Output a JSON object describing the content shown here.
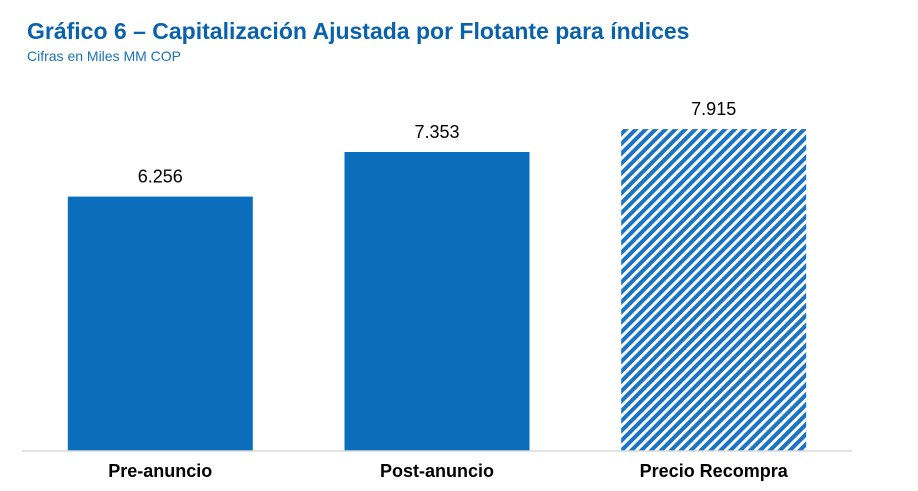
{
  "chart_data": {
    "type": "bar",
    "title": "Gráfico 6 – Capitalización Ajustada por Flotante para índices",
    "subtitle": "Cifras en Miles MM COP",
    "categories": [
      "Pre-anuncio",
      "Post-anuncio",
      "Precio Recompra"
    ],
    "values": [
      6256,
      7353,
      7915
    ],
    "value_labels": [
      "6.256",
      "7.353",
      "7.915"
    ],
    "bar_styles": [
      "solid",
      "solid",
      "hatched"
    ],
    "xlabel": "",
    "ylabel": "",
    "ylim": [
      0,
      9000
    ],
    "grid": false,
    "legend": "none",
    "colors": {
      "bar": "#0a6ebd",
      "hatch": "#1a73c4",
      "axis": "#d9d9d9",
      "title": "#0a62ad",
      "subtitle": "#1a73b8"
    }
  }
}
